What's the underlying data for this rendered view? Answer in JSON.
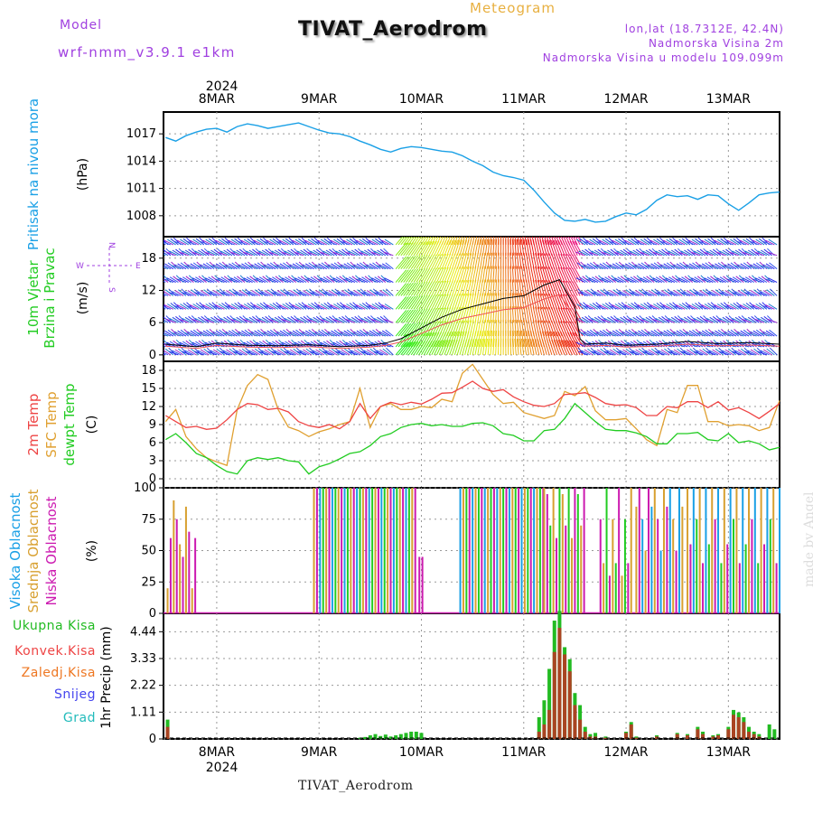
{
  "header": {
    "model_label": "Model",
    "model_name": "wrf-nmm_v3.9.1 e1km",
    "title": "TIVAT_Aerodrom",
    "subtitle": "Meteogram",
    "coords": "lon,lat (18.7312E, 42.4N)",
    "elev": "Nadmorska Visina 2m",
    "elev_model": "Nadmorska Visina u modelu 109.099m",
    "footer": "TIVAT_Aerodrom",
    "watermark": "made by Angel"
  },
  "colors": {
    "pressure": "#1aa0e6",
    "temp2m": "#ee4444",
    "sfc": "#e0a030",
    "dew": "#22cc22",
    "high_cloud": "#1aa0e6",
    "mid_cloud": "#d8a030",
    "low_cloud": "#cc1ab0",
    "total_precip": "#22bb22",
    "conv_precip": "#aa4422",
    "header_purple": "#a040e0",
    "subtitle_orange": "#e8b040"
  },
  "chart_data": [
    {
      "type": "line",
      "name": "pressure",
      "ylabel": "Pritisak na nivou mora",
      "unit": "(hPa)",
      "yticks": [
        "1008",
        "1011",
        "1014",
        "1017"
      ],
      "ylim": [
        1005.7,
        1019.4
      ],
      "x_days": [
        7.5,
        7.6,
        7.7,
        7.8,
        7.9,
        8.0,
        8.1,
        8.2,
        8.3,
        8.4,
        8.5,
        8.6,
        8.7,
        8.8,
        8.9,
        9.0,
        9.1,
        9.2,
        9.3,
        9.4,
        9.5,
        9.6,
        9.7,
        9.8,
        9.9,
        10.0,
        10.1,
        10.2,
        10.3,
        10.4,
        10.5,
        10.6,
        10.7,
        10.8,
        10.9,
        11.0,
        11.1,
        11.2,
        11.3,
        11.4,
        11.5,
        11.6,
        11.7,
        11.8,
        11.9,
        12.0,
        12.1,
        12.2,
        12.3,
        12.4,
        12.5,
        12.6,
        12.7,
        12.8,
        12.9,
        13.0,
        13.1,
        13.2,
        13.3,
        13.4,
        13.5
      ],
      "values": [
        1016.6,
        1016.2,
        1016.8,
        1017.2,
        1017.5,
        1017.6,
        1017.2,
        1017.8,
        1018.1,
        1017.9,
        1017.6,
        1017.8,
        1018.0,
        1018.2,
        1017.8,
        1017.4,
        1017.1,
        1017.0,
        1016.7,
        1016.2,
        1015.8,
        1015.3,
        1015.0,
        1015.4,
        1015.6,
        1015.5,
        1015.3,
        1015.1,
        1015.0,
        1014.6,
        1014.0,
        1013.5,
        1012.8,
        1012.4,
        1012.2,
        1011.9,
        1010.8,
        1009.5,
        1008.3,
        1007.5,
        1007.4,
        1007.6,
        1007.3,
        1007.4,
        1007.9,
        1008.3,
        1008.1,
        1008.7,
        1009.7,
        1010.3,
        1010.1,
        1010.2,
        1009.8,
        1010.3,
        1010.2,
        1009.3,
        1008.6,
        1009.4,
        1010.3,
        1010.5,
        1010.6
      ]
    },
    {
      "type": "line",
      "name": "wind",
      "ylabel1": "10m Vjetar",
      "ylabel2": "Brzina i Pravac",
      "unit": "(m/s)",
      "yticks": [
        "0",
        "6",
        "12",
        "18"
      ],
      "ylim": [
        -1.2,
        22
      ],
      "compass": {
        "n": "N",
        "s": "S",
        "e": "E",
        "w": "W"
      },
      "x_days": [
        7.5,
        7.8,
        8.0,
        8.3,
        8.6,
        8.9,
        9.2,
        9.5,
        9.65,
        9.8,
        10.0,
        10.2,
        10.4,
        10.6,
        10.8,
        11.0,
        11.2,
        11.35,
        11.5,
        11.55,
        11.6,
        11.8,
        12.0,
        12.3,
        12.6,
        12.9,
        13.2,
        13.5
      ],
      "speed": [
        2.0,
        1.5,
        2.2,
        1.8,
        1.7,
        1.9,
        1.5,
        1.8,
        2.2,
        3.0,
        5.0,
        7.0,
        8.5,
        9.5,
        10.5,
        11.0,
        13.0,
        14.0,
        9.0,
        3.0,
        2.0,
        2.2,
        1.8,
        2.0,
        2.5,
        2.1,
        2.3,
        2.0
      ],
      "speed_color": "#000000",
      "gust_color": "#ee5555"
    },
    {
      "type": "line",
      "name": "temperature",
      "labels": [
        "2m Temp",
        "SFC Temp",
        "dewpt Temp"
      ],
      "unit": "(C)",
      "yticks": [
        "0",
        "3",
        "6",
        "9",
        "12",
        "15",
        "18"
      ],
      "ylim": [
        -1.5,
        19.5
      ],
      "x_days": [
        7.5,
        7.6,
        7.7,
        7.8,
        7.9,
        8.0,
        8.1,
        8.2,
        8.3,
        8.4,
        8.5,
        8.6,
        8.7,
        8.8,
        8.9,
        9.0,
        9.1,
        9.2,
        9.3,
        9.4,
        9.5,
        9.6,
        9.7,
        9.8,
        9.9,
        10.0,
        10.1,
        10.2,
        10.3,
        10.4,
        10.5,
        10.6,
        10.7,
        10.8,
        10.9,
        11.0,
        11.1,
        11.2,
        11.3,
        11.4,
        11.5,
        11.6,
        11.7,
        11.8,
        11.9,
        12.0,
        12.1,
        12.2,
        12.3,
        12.4,
        12.5,
        12.6,
        12.7,
        12.8,
        12.9,
        13.0,
        13.1,
        13.2,
        13.3,
        13.4,
        13.5
      ],
      "temp2m": [
        10.5,
        9.5,
        8.5,
        8.7,
        8.2,
        8.4,
        9.8,
        11.5,
        12.5,
        12.3,
        11.5,
        11.7,
        11.1,
        9.5,
        8.8,
        8.5,
        9.0,
        8.3,
        9.5,
        12.5,
        10.0,
        12.0,
        12.7,
        12.3,
        12.7,
        12.4,
        13.2,
        14.2,
        14.3,
        15.2,
        16.2,
        15.0,
        14.5,
        14.8,
        13.6,
        12.8,
        12.2,
        12.0,
        12.5,
        14.0,
        14.1,
        14.3,
        13.5,
        12.5,
        12.2,
        12.3,
        11.8,
        10.5,
        10.5,
        12.0,
        11.8,
        12.8,
        12.8,
        11.8,
        12.8,
        11.4,
        11.8,
        11.0,
        10.0,
        11.2,
        12.5
      ],
      "sfc": [
        9.5,
        11.5,
        7.0,
        5.0,
        3.5,
        2.8,
        2.2,
        11.5,
        15.5,
        17.3,
        16.5,
        11.5,
        8.6,
        8.0,
        7.0,
        7.8,
        8.3,
        9.0,
        9.5,
        15.0,
        8.5,
        12.0,
        12.5,
        11.5,
        11.5,
        12.0,
        11.8,
        13.2,
        12.8,
        17.5,
        19.0,
        16.5,
        14.0,
        12.5,
        12.7,
        11.0,
        10.5,
        10.0,
        10.5,
        14.5,
        13.8,
        15.3,
        11.3,
        9.8,
        9.8,
        10.0,
        8.3,
        6.5,
        5.5,
        11.5,
        11.0,
        15.5,
        15.5,
        9.5,
        9.5,
        8.8,
        9.0,
        8.8,
        8.0,
        8.5,
        13.0
      ],
      "dew": [
        6.5,
        7.5,
        6.0,
        4.2,
        3.5,
        2.2,
        1.2,
        0.8,
        3.0,
        3.5,
        3.2,
        3.5,
        3.0,
        2.8,
        0.8,
        2.0,
        2.5,
        3.3,
        4.2,
        4.5,
        5.5,
        7.0,
        7.5,
        8.5,
        9.0,
        9.2,
        8.8,
        9.0,
        8.7,
        8.7,
        9.2,
        9.3,
        8.8,
        7.5,
        7.2,
        6.3,
        6.3,
        8.0,
        8.2,
        10.0,
        12.5,
        11.0,
        9.5,
        8.2,
        8.0,
        8.0,
        7.6,
        7.0,
        5.8,
        5.8,
        7.5,
        7.5,
        7.7,
        6.5,
        6.3,
        7.5,
        6.0,
        6.3,
        5.8,
        4.8,
        5.2
      ]
    },
    {
      "type": "bar",
      "name": "cloud",
      "labels": [
        "Visoka Oblacnost",
        "Srednja Oblacnost",
        "Niska Oblacnost"
      ],
      "unit": "(%)",
      "yticks": [
        "0",
        "25",
        "50",
        "75",
        "100"
      ],
      "ylim": [
        0,
        100
      ]
    },
    {
      "type": "bar",
      "name": "precip",
      "labels": [
        "Ukupna Kisa",
        "Konvek.Kisa",
        "Zaledj.Kisa",
        "Snijeg",
        "Grad"
      ],
      "label_colors": [
        "#22bb22",
        "#ee4444",
        "#ee7722",
        "#4444ee",
        "#22bbbb"
      ],
      "ylabel": "1hr Precip (mm)",
      "yticks": [
        "0",
        "1.11",
        "2.22",
        "3.33",
        "4.44"
      ],
      "ylim": [
        0,
        5.2
      ],
      "x_days": [
        7.52,
        9.4,
        9.45,
        9.5,
        9.55,
        9.6,
        9.65,
        9.7,
        9.75,
        9.8,
        9.85,
        9.9,
        9.95,
        10.0,
        11.15,
        11.2,
        11.25,
        11.3,
        11.35,
        11.4,
        11.45,
        11.5,
        11.55,
        11.6,
        11.65,
        11.7,
        11.8,
        12.0,
        12.05,
        12.1,
        12.3,
        12.5,
        12.6,
        12.7,
        12.75,
        12.85,
        12.9,
        13.0,
        13.05,
        13.1,
        13.15,
        13.2,
        13.25,
        13.3,
        13.4,
        13.45
      ],
      "total": [
        0.8,
        0.05,
        0.08,
        0.15,
        0.2,
        0.12,
        0.18,
        0.1,
        0.15,
        0.2,
        0.25,
        0.3,
        0.3,
        0.25,
        0.9,
        1.6,
        2.9,
        4.9,
        5.3,
        3.8,
        3.3,
        1.9,
        1.4,
        0.5,
        0.2,
        0.25,
        0.1,
        0.3,
        0.7,
        0.1,
        0.15,
        0.25,
        0.2,
        0.5,
        0.3,
        0.15,
        0.2,
        0.5,
        1.2,
        1.1,
        0.9,
        0.5,
        0.3,
        0.2,
        0.6,
        0.4
      ],
      "conv": [
        0.5,
        0.0,
        0.0,
        0.0,
        0.0,
        0.0,
        0.0,
        0.0,
        0.0,
        0.0,
        0.0,
        0.0,
        0.0,
        0.0,
        0.3,
        0.6,
        1.2,
        3.6,
        4.6,
        3.5,
        2.8,
        1.4,
        0.8,
        0.3,
        0.1,
        0.1,
        0.05,
        0.25,
        0.6,
        0.05,
        0.1,
        0.2,
        0.15,
        0.4,
        0.2,
        0.1,
        0.15,
        0.4,
        1.0,
        0.9,
        0.7,
        0.3,
        0.2,
        0.1,
        0.0,
        0.0
      ]
    }
  ],
  "time_axis": {
    "year": "2024",
    "ticks": [
      {
        "day": 8,
        "label": "8MAR"
      },
      {
        "day": 9,
        "label": "9MAR"
      },
      {
        "day": 10,
        "label": "10MAR"
      },
      {
        "day": 11,
        "label": "11MAR"
      },
      {
        "day": 12,
        "label": "12MAR"
      },
      {
        "day": 13,
        "label": "13MAR"
      }
    ],
    "range": [
      7.48,
      13.5
    ]
  }
}
